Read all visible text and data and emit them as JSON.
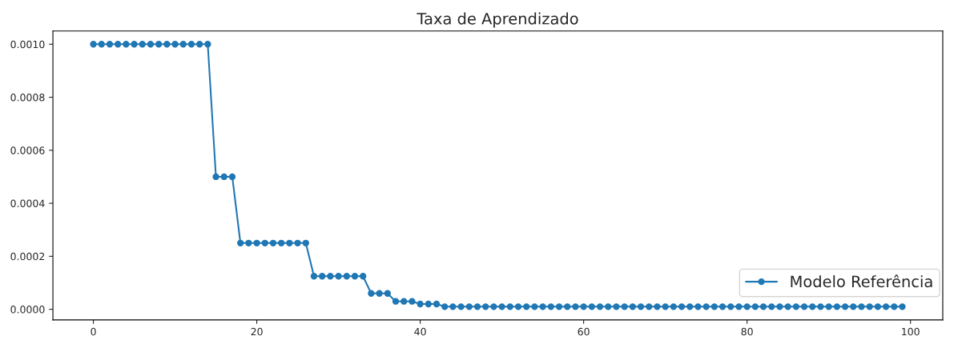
{
  "chart_data": {
    "type": "line",
    "title": "Taxa de Aprendizado",
    "x": [
      0,
      1,
      2,
      3,
      4,
      5,
      6,
      7,
      8,
      9,
      10,
      11,
      12,
      13,
      14,
      15,
      16,
      17,
      18,
      19,
      20,
      21,
      22,
      23,
      24,
      25,
      26,
      27,
      28,
      29,
      30,
      31,
      32,
      33,
      34,
      35,
      36,
      37,
      38,
      39,
      40,
      41,
      42,
      43,
      44,
      45,
      46,
      47,
      48,
      49,
      50,
      51,
      52,
      53,
      54,
      55,
      56,
      57,
      58,
      59,
      60,
      61,
      62,
      63,
      64,
      65,
      66,
      67,
      68,
      69,
      70,
      71,
      72,
      73,
      74,
      75,
      76,
      77,
      78,
      79,
      80,
      81,
      82,
      83,
      84,
      85,
      86,
      87,
      88,
      89,
      90,
      91,
      92,
      93,
      94,
      95,
      96,
      97,
      98,
      99
    ],
    "series": [
      {
        "name": "Modelo Referência",
        "color": "#1f77b4",
        "values": [
          0.001,
          0.001,
          0.001,
          0.001,
          0.001,
          0.001,
          0.001,
          0.001,
          0.001,
          0.001,
          0.001,
          0.001,
          0.001,
          0.001,
          0.001,
          0.0005,
          0.0005,
          0.0005,
          0.00025,
          0.00025,
          0.00025,
          0.00025,
          0.00025,
          0.00025,
          0.00025,
          0.00025,
          0.00025,
          0.000125,
          0.000125,
          0.000125,
          0.000125,
          0.000125,
          0.000125,
          0.000125,
          6e-05,
          6e-05,
          6e-05,
          3e-05,
          3e-05,
          3e-05,
          2e-05,
          2e-05,
          2e-05,
          1e-05,
          1e-05,
          1e-05,
          1e-05,
          1e-05,
          1e-05,
          1e-05,
          1e-05,
          1e-05,
          1e-05,
          1e-05,
          1e-05,
          1e-05,
          1e-05,
          1e-05,
          1e-05,
          1e-05,
          1e-05,
          1e-05,
          1e-05,
          1e-05,
          1e-05,
          1e-05,
          1e-05,
          1e-05,
          1e-05,
          1e-05,
          1e-05,
          1e-05,
          1e-05,
          1e-05,
          1e-05,
          1e-05,
          1e-05,
          1e-05,
          1e-05,
          1e-05,
          1e-05,
          1e-05,
          1e-05,
          1e-05,
          1e-05,
          1e-05,
          1e-05,
          1e-05,
          1e-05,
          1e-05,
          1e-05,
          1e-05,
          1e-05,
          1e-05,
          1e-05,
          1e-05,
          1e-05,
          1e-05,
          1e-05,
          1e-05
        ]
      }
    ],
    "xlim": [
      -4.95,
      103.95
    ],
    "ylim": [
      -4e-05,
      0.00105
    ],
    "xticks": [
      0,
      20,
      40,
      60,
      80,
      100
    ],
    "yticks": [
      {
        "value": 0,
        "label": "0.0000"
      },
      {
        "value": 0.0002,
        "label": "0.0002"
      },
      {
        "value": 0.0004,
        "label": "0.0004"
      },
      {
        "value": 0.0006,
        "label": "0.0006"
      },
      {
        "value": 0.0008,
        "label": "0.0008"
      },
      {
        "value": 0.001,
        "label": "0.0010"
      }
    ],
    "marker": "circle",
    "line_style": "solid",
    "legend": "bottom right",
    "grid": false
  }
}
